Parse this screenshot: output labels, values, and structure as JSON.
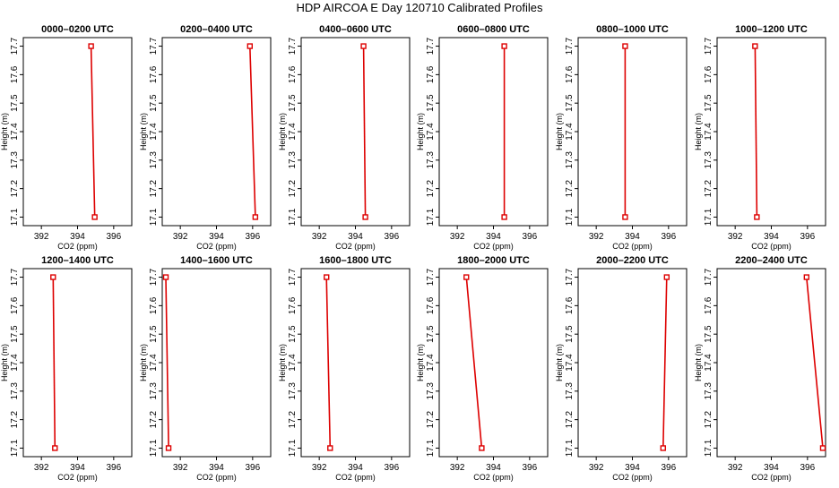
{
  "title": "HDP AIRCOA E  Day 120710  Calibrated Profiles",
  "chart_data": {
    "type": "line",
    "series_color": "#dd0000",
    "xlabel": "CO2 (ppm)",
    "ylabel": "Height (m)",
    "xlim": [
      391.0,
      397.0
    ],
    "ylim": [
      17.07,
      17.73
    ],
    "xticks": [
      392,
      394,
      396
    ],
    "yticks": [
      17.1,
      17.2,
      17.3,
      17.4,
      17.5,
      17.6,
      17.7
    ],
    "panels": [
      {
        "title": "0000–0200 UTC",
        "x": [
          394.95,
          394.75
        ],
        "y": [
          17.1,
          17.7
        ]
      },
      {
        "title": "0200–0400 UTC",
        "x": [
          396.15,
          395.85
        ],
        "y": [
          17.1,
          17.7
        ]
      },
      {
        "title": "0400–0600 UTC",
        "x": [
          394.55,
          394.45
        ],
        "y": [
          17.1,
          17.7
        ]
      },
      {
        "title": "0600–0800 UTC",
        "x": [
          394.6,
          394.6
        ],
        "y": [
          17.1,
          17.7
        ]
      },
      {
        "title": "0800–1000 UTC",
        "x": [
          393.6,
          393.6
        ],
        "y": [
          17.1,
          17.7
        ]
      },
      {
        "title": "1000–1200 UTC",
        "x": [
          393.2,
          393.1
        ],
        "y": [
          17.1,
          17.7
        ]
      },
      {
        "title": "1200–1400 UTC",
        "x": [
          392.75,
          392.65
        ],
        "y": [
          17.1,
          17.7
        ]
      },
      {
        "title": "1400–1600 UTC",
        "x": [
          391.35,
          391.2
        ],
        "y": [
          17.1,
          17.7
        ]
      },
      {
        "title": "1600–1800 UTC",
        "x": [
          392.6,
          392.4
        ],
        "y": [
          17.1,
          17.7
        ]
      },
      {
        "title": "1800–2000 UTC",
        "x": [
          393.35,
          392.5
        ],
        "y": [
          17.1,
          17.7
        ]
      },
      {
        "title": "2000–2200 UTC",
        "x": [
          395.7,
          395.9
        ],
        "y": [
          17.1,
          17.7
        ]
      },
      {
        "title": "2200–2400 UTC",
        "x": [
          396.85,
          395.95
        ],
        "y": [
          17.1,
          17.7
        ]
      }
    ]
  }
}
